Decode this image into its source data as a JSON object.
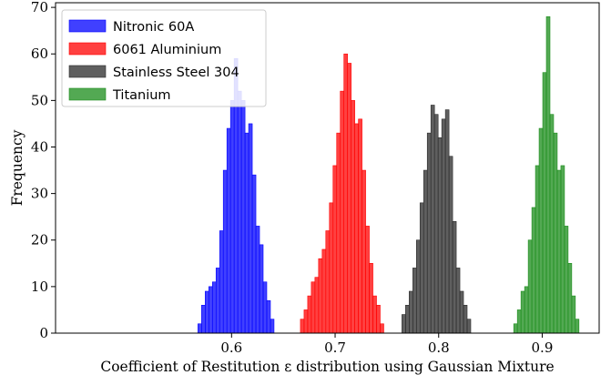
{
  "chart_data": {
    "type": "histogram",
    "xlabel": "Coefficient of Restitution ε distribution using Gaussian Mixture",
    "ylabel": "Frequency",
    "xlim": [
      0.43,
      0.955
    ],
    "ylim": [
      0,
      71
    ],
    "xticks": [
      0.6,
      0.7,
      0.8,
      0.9
    ],
    "xtick_labels": [
      "0.6",
      "0.7",
      "0.8",
      "0.9"
    ],
    "yticks": [
      0,
      10,
      20,
      30,
      40,
      50,
      60,
      70
    ],
    "ytick_labels": [
      "0",
      "10",
      "20",
      "30",
      "40",
      "50",
      "60",
      "70"
    ],
    "legend_position": "top-left",
    "series": [
      {
        "name": "Nitronic 60A",
        "color": "#0000ff",
        "bin_start": 0.5675,
        "bin_width": 0.0035,
        "counts": [
          2,
          6,
          9,
          10,
          11,
          14,
          22,
          35,
          44,
          50,
          59,
          52,
          50,
          43,
          45,
          34,
          23,
          19,
          11,
          7,
          3
        ]
      },
      {
        "name": "6061 Aluminium",
        "color": "#ff0000",
        "bin_start": 0.6665,
        "bin_width": 0.0035,
        "counts": [
          3,
          5,
          8,
          11,
          12,
          16,
          18,
          22,
          28,
          36,
          43,
          52,
          60,
          58,
          50,
          45,
          46,
          35,
          23,
          15,
          8,
          6,
          2
        ]
      },
      {
        "name": "Stainless Steel 304",
        "color": "#2a2a2a",
        "bin_start": 0.7645,
        "bin_width": 0.0035,
        "counts": [
          4,
          6,
          9,
          14,
          20,
          28,
          35,
          43,
          49,
          47,
          42,
          46,
          48,
          38,
          24,
          14,
          9,
          6,
          3
        ]
      },
      {
        "name": "Titanium",
        "color": "#1a8c1a",
        "bin_start": 0.8725,
        "bin_width": 0.0035,
        "counts": [
          2,
          5,
          9,
          10,
          20,
          27,
          36,
          44,
          56,
          68,
          47,
          43,
          35,
          36,
          23,
          15,
          8,
          3
        ]
      }
    ]
  }
}
